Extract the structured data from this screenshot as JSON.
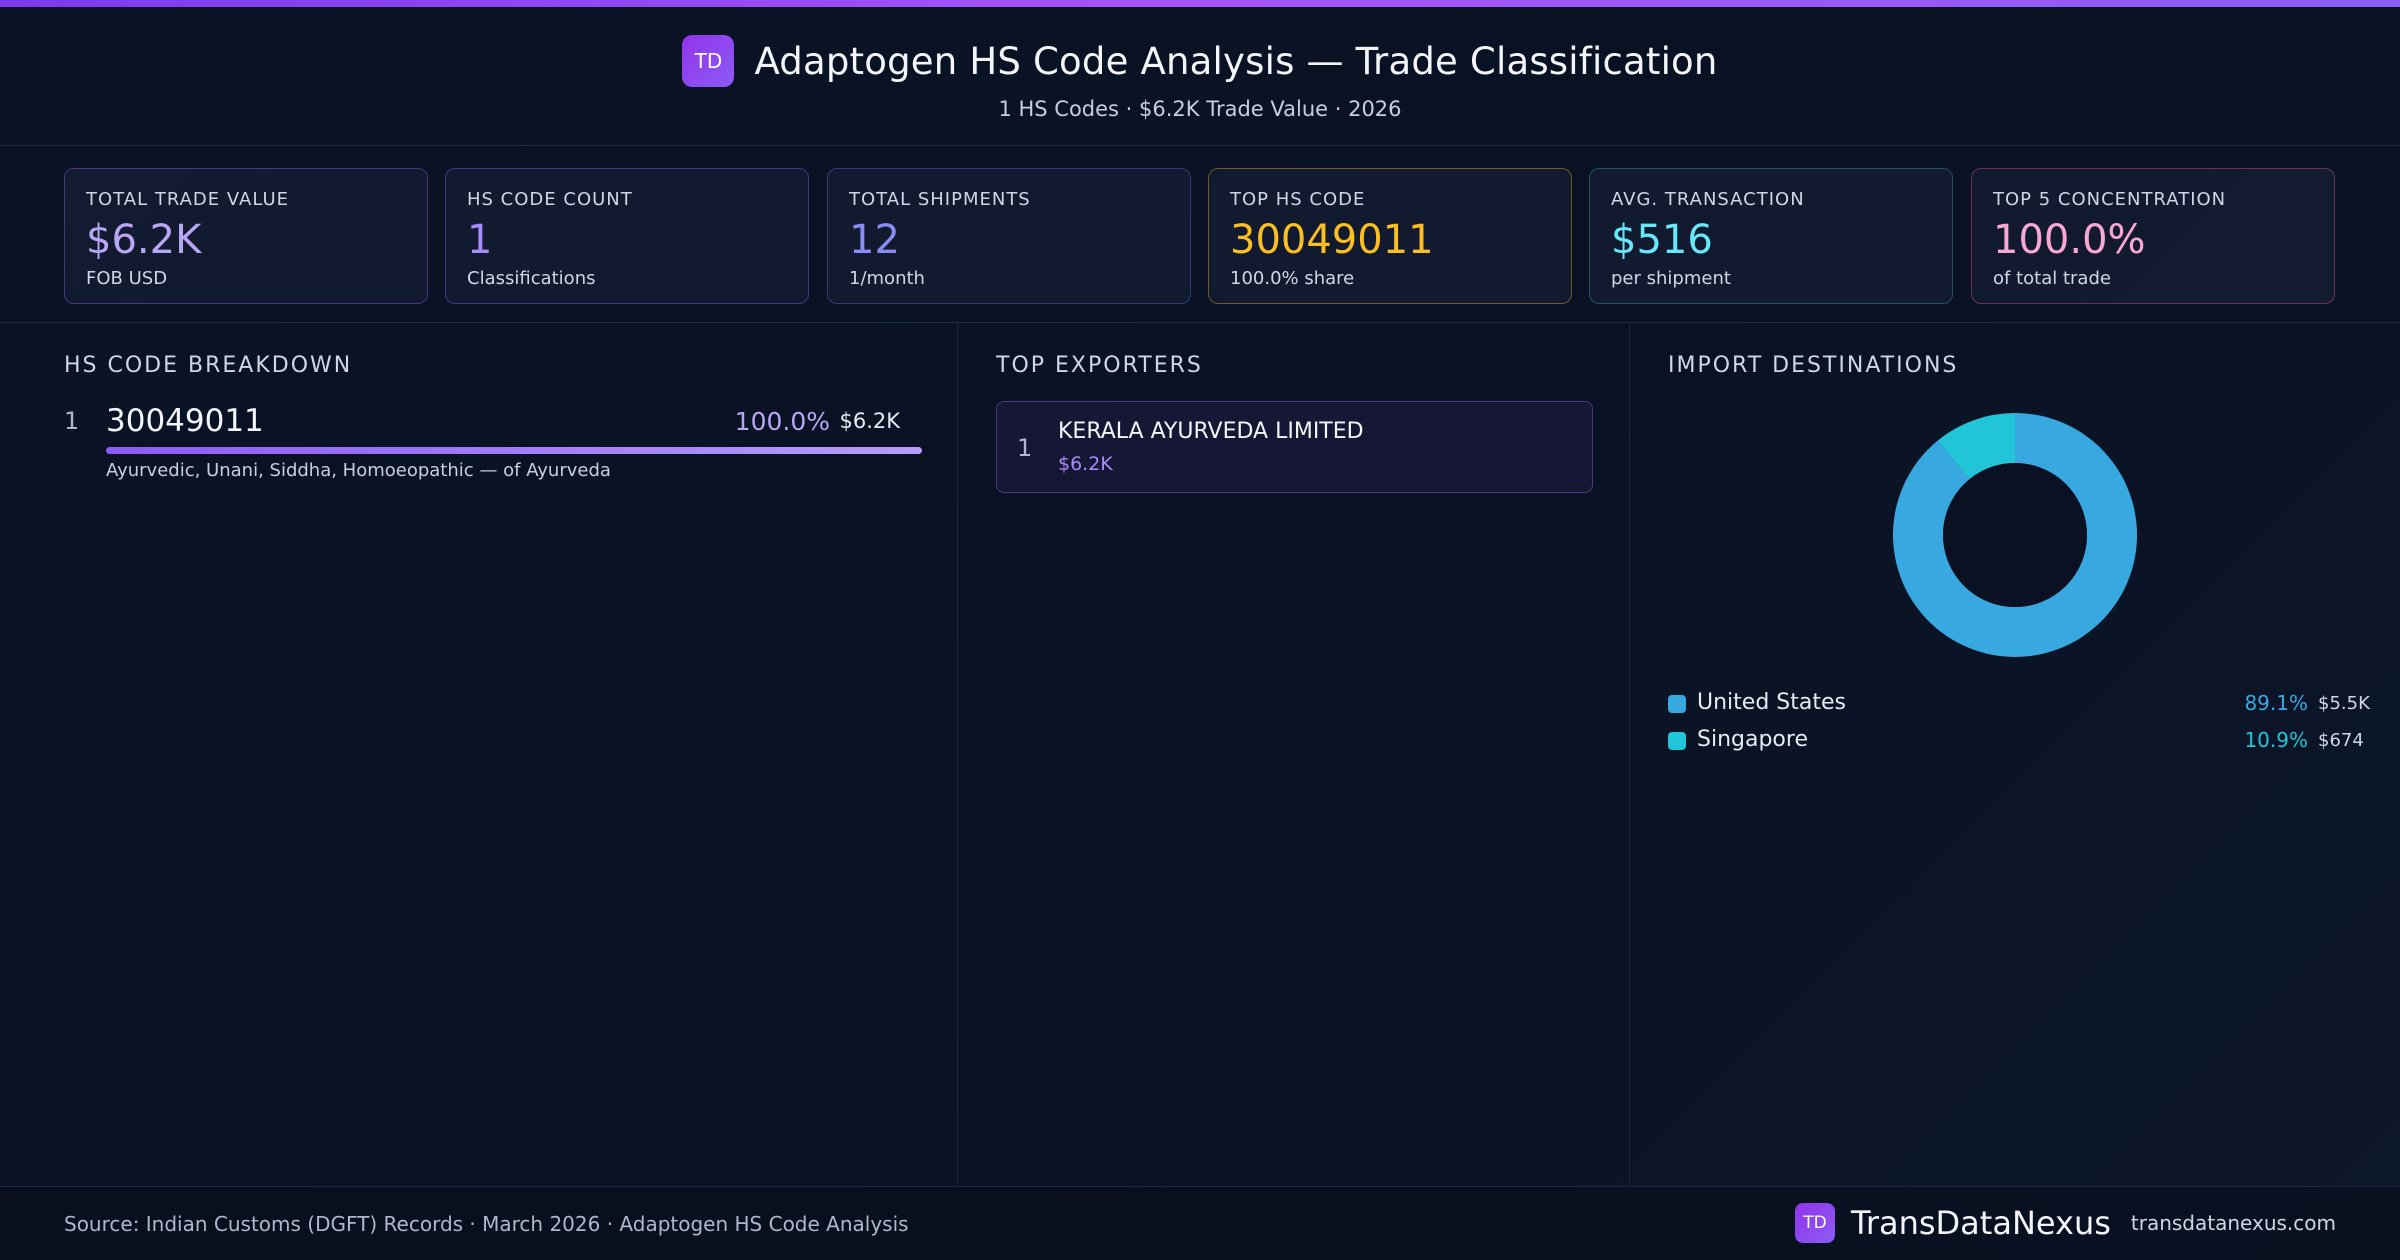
{
  "header": {
    "logo_text": "TD",
    "title": "Adaptogen HS Code Analysis — Trade Classification",
    "subtitle": "1 HS Codes · $6.2K Trade Value · 2026"
  },
  "kpis": [
    {
      "label": "Total Trade Value",
      "value": "$6.2K",
      "sub": "FOB USD",
      "color": "#b9a6f5",
      "border": "#4c3583"
    },
    {
      "label": "HS Code Count",
      "value": "1",
      "sub": "Classifications",
      "color": "#a78bfa",
      "border": "#3d3a84"
    },
    {
      "label": "Total Shipments",
      "value": "12",
      "sub": "1/month",
      "color": "#8b8cf5",
      "border": "#323a7a"
    },
    {
      "label": "Top HS Code",
      "value": "30049011",
      "sub": "100.0% share",
      "color": "#fbbf24",
      "border": "#6b5a2a"
    },
    {
      "label": "Avg. Transaction",
      "value": "$516",
      "sub": "per shipment",
      "color": "#67e8f9",
      "border": "#1e5566"
    },
    {
      "label": "Top 5 Concentration",
      "value": "100.0%",
      "sub": "of total trade",
      "color": "#f9a8d4",
      "border": "#6b2f55"
    }
  ],
  "hs_breakdown": {
    "title": "HS Code Breakdown",
    "items": [
      {
        "rank": "1",
        "code": "30049011",
        "pct": "100.0%",
        "value": "$6.2K",
        "share": 1.0,
        "desc": "Ayurvedic, Unani, Siddha, Homoeopathic — of Ayurveda"
      }
    ]
  },
  "exporters": {
    "title": "Top Exporters",
    "items": [
      {
        "rank": "1",
        "name": "KERALA AYURVEDA LIMITED",
        "value": "$6.2K"
      }
    ]
  },
  "destinations": {
    "title": "Import Destinations",
    "items": [
      {
        "name": "United States",
        "pct": "89.1%",
        "value": "$5.5K",
        "share": 0.891,
        "color": "#38a9e0"
      },
      {
        "name": "Singapore",
        "pct": "10.9%",
        "value": "$674",
        "share": 0.109,
        "color": "#22c5d8"
      }
    ]
  },
  "footer": {
    "source": "Source: Indian Customs (DGFT) Records · March 2026 · Adaptogen HS Code Analysis",
    "logo_text": "TD",
    "brand": "TransDataNexus",
    "url": "transdatanexus.com"
  }
}
